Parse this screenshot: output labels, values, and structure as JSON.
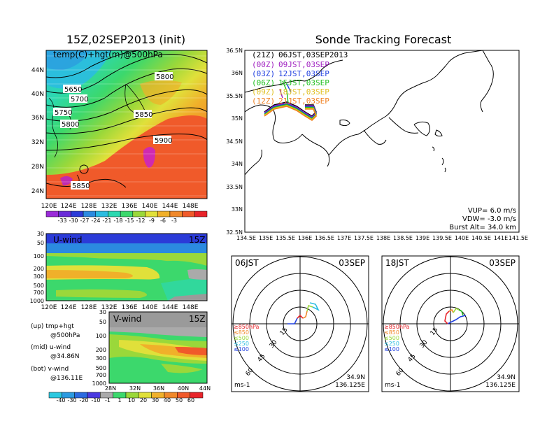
{
  "colors": {
    "temp_scale": [
      "#9a2bd8",
      "#6a2bd8",
      "#2b3bd8",
      "#2b8ae0",
      "#2bbce0",
      "#2cd8b0",
      "#3cd86c",
      "#9ad83a",
      "#e0e03a",
      "#f0b02a",
      "#f0882a",
      "#f05a2a",
      "#e8242a"
    ],
    "wind_scale": [
      "#2bc8e0",
      "#2b9ae0",
      "#2b6ae0",
      "#4a3ae0",
      "#aaaaaa",
      "#3cd86c",
      "#9ad83a",
      "#e0e03a",
      "#f0b02a",
      "#f0882a",
      "#f05a2a",
      "#e8242a"
    ],
    "track_21z": "#000000",
    "track_00z": "#a020c0",
    "track_03z": "#2040e0",
    "track_06z": "#20c020",
    "track_09z": "#e0c020",
    "track_12z": "#f08020"
  },
  "header": {
    "main_title": "15Z,02SEP2013 (init)",
    "right_title": "Sonde Tracking Forecast"
  },
  "map500": {
    "label": "temp(C)+hgt(m)@500hPa",
    "lat_labels": [
      "44N",
      "40N",
      "36N",
      "32N",
      "28N",
      "24N"
    ],
    "lon_labels": [
      "120E",
      "124E",
      "128E",
      "132E",
      "136E",
      "140E",
      "144E",
      "148E"
    ],
    "contour_labels": [
      "5650",
      "5700",
      "5750",
      "5800",
      "5800",
      "5850",
      "5900",
      "5850"
    ],
    "colorbar_labels": [
      "-33",
      "-30",
      "-27",
      "-24",
      "-21",
      "-18",
      "-15",
      "-12",
      "-9",
      "-6",
      "-3"
    ]
  },
  "uwind": {
    "label": "U-wind",
    "time": "15Z",
    "p_labels": [
      "30",
      "50",
      "100",
      "200",
      "300",
      "500",
      "700",
      "1000"
    ],
    "lon_labels": [
      "120E",
      "124E",
      "128E",
      "132E",
      "136E",
      "140E",
      "144E",
      "148E"
    ]
  },
  "vwind": {
    "label": "V-wind",
    "time": "15Z",
    "lat_labels": [
      "28N",
      "32N",
      "36N",
      "40N",
      "44N"
    ],
    "colorbar_labels": [
      "-40",
      "-30",
      "-20",
      "-10",
      "-1",
      "1",
      "10",
      "20",
      "30",
      "40",
      "50",
      "60"
    ]
  },
  "legend_text": {
    "up": "(up)  tmp+hgt",
    "up2": "@500hPa",
    "mid": "(mid)  u-wind",
    "mid2": "@34.86N",
    "bot": "(bot)  v-wind",
    "bot2": "@136.11E"
  },
  "trackmap": {
    "lat_labels": [
      "36.5N",
      "36N",
      "35.5N",
      "35N",
      "34.5N",
      "34N",
      "33.5N",
      "33N",
      "32.5N"
    ],
    "lon_labels": [
      "134.5E",
      "135E",
      "135.5E",
      "136E",
      "136.5E",
      "137E",
      "137.5E",
      "138E",
      "138.5E",
      "139E",
      "139.5E",
      "140E",
      "140.5E",
      "141E",
      "141.5E"
    ],
    "entries": [
      {
        "key": "(21Z)",
        "value": "06JST,03SEP2013",
        "color": "#000000"
      },
      {
        "key": "(00Z)",
        "value": "09JST,03SEP",
        "color": "#a020c0"
      },
      {
        "key": "(03Z)",
        "value": "12JST,03SEP",
        "color": "#2040e0"
      },
      {
        "key": "(06Z)",
        "value": "15JST,03SEP",
        "color": "#20c020"
      },
      {
        "key": "(09Z)",
        "value": "18JST,03SEP",
        "color": "#e0c020"
      },
      {
        "key": "(12Z)",
        "value": "21JST,03SEP",
        "color": "#f08020"
      }
    ],
    "vup": "VUP=  6.0  m/s",
    "vdw": "VDW= -3.0  m/s",
    "burst": "Burst Alt=  34.0  km"
  },
  "polar_left": {
    "time": "06JST",
    "date": "03SEP",
    "rings": [
      "15",
      "30",
      "45",
      "60"
    ],
    "levels": [
      "≥850hPa",
      "≤850",
      "≤500",
      "≤250",
      "≤100"
    ],
    "unit": "ms-1",
    "lat": "34.9N",
    "lon": "136.125E"
  },
  "polar_right": {
    "time": "18JST",
    "date": "03SEP",
    "rings": [
      "15",
      "30",
      "45",
      "60"
    ],
    "levels": [
      "≥850hPa",
      "≤850",
      "≤500",
      "≤250",
      "≤100"
    ],
    "unit": "ms-1",
    "lat": "34.9N",
    "lon": "136.125E"
  },
  "chart_data": [
    {
      "type": "heatmap",
      "title": "15Z,02SEP2013 (init)",
      "subtitle": "temp(C)+hgt(m)@500hPa",
      "x_ticks": [
        "120E",
        "124E",
        "128E",
        "132E",
        "136E",
        "140E",
        "144E",
        "148E"
      ],
      "y_ticks": [
        "24N",
        "28N",
        "32N",
        "36N",
        "40N",
        "44N"
      ],
      "contour_labels": [
        5650,
        5700,
        5750,
        5800,
        5800,
        5850,
        5900,
        5850
      ],
      "colorbar": [
        -33,
        -30,
        -27,
        -24,
        -21,
        -18,
        -15,
        -12,
        -9,
        -6,
        -3
      ]
    },
    {
      "type": "heatmap",
      "title": "U-wind",
      "x_ticks": [
        "120E",
        "124E",
        "128E",
        "132E",
        "136E",
        "140E",
        "144E",
        "148E"
      ],
      "y_ticks": [
        30,
        50,
        100,
        200,
        300,
        500,
        700,
        1000
      ]
    },
    {
      "type": "heatmap",
      "title": "V-wind",
      "x_ticks": [
        "28N",
        "32N",
        "36N",
        "40N",
        "44N"
      ],
      "colorbar": [
        -40,
        -30,
        -20,
        -10,
        -1,
        1,
        10,
        20,
        30,
        40,
        50,
        60
      ]
    },
    {
      "type": "line",
      "title": "Sonde Tracking Forecast",
      "x_ticks": [
        "134.5E",
        "135E",
        "135.5E",
        "136E",
        "136.5E",
        "137E",
        "137.5E",
        "138E",
        "138.5E",
        "139E",
        "139.5E",
        "140E",
        "140.5E",
        "141E",
        "141.5E"
      ],
      "y_ticks": [
        "32.5N",
        "33N",
        "33.5N",
        "34N",
        "34.5N",
        "35N",
        "35.5N",
        "36N",
        "36.5N"
      ]
    }
  ]
}
